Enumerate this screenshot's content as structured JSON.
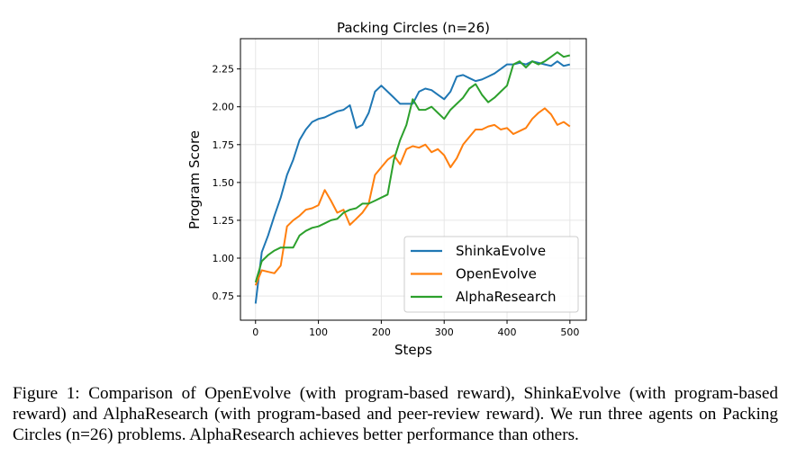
{
  "chart_data": {
    "type": "line",
    "title": "Packing Circles (n=26)",
    "xlabel": "Steps",
    "ylabel": "Program Score",
    "xlim": [
      -24,
      526
    ],
    "ylim": [
      0.59,
      2.45
    ],
    "xticks": [
      0,
      100,
      200,
      300,
      400,
      500
    ],
    "yticks": [
      0.75,
      1.0,
      1.25,
      1.5,
      1.75,
      2.0,
      2.25
    ],
    "ytick_labels": [
      "0.75",
      "1.00",
      "1.25",
      "1.50",
      "1.75",
      "2.00",
      "2.25"
    ],
    "grid": true,
    "legend_position": "bottom-right",
    "x": [
      0,
      10,
      20,
      30,
      40,
      50,
      60,
      70,
      80,
      90,
      100,
      110,
      120,
      130,
      140,
      150,
      160,
      170,
      180,
      190,
      200,
      210,
      220,
      230,
      240,
      250,
      260,
      270,
      280,
      290,
      300,
      310,
      320,
      330,
      340,
      350,
      360,
      370,
      380,
      390,
      400,
      410,
      420,
      430,
      440,
      450,
      460,
      470,
      480,
      490,
      500
    ],
    "series": [
      {
        "name": "ShinkaEvolve",
        "color": "#1f77b4",
        "values": [
          0.7,
          1.04,
          1.15,
          1.28,
          1.4,
          1.55,
          1.65,
          1.78,
          1.85,
          1.9,
          1.92,
          1.93,
          1.95,
          1.97,
          1.98,
          2.01,
          1.86,
          1.88,
          1.96,
          2.1,
          2.14,
          2.1,
          2.06,
          2.02,
          2.02,
          2.02,
          2.1,
          2.12,
          2.11,
          2.08,
          2.05,
          2.1,
          2.2,
          2.21,
          2.19,
          2.17,
          2.18,
          2.2,
          2.22,
          2.25,
          2.28,
          2.28,
          2.29,
          2.28,
          2.3,
          2.29,
          2.28,
          2.27,
          2.3,
          2.27,
          2.28
        ]
      },
      {
        "name": "OpenEvolve",
        "color": "#ff7f0e",
        "values": [
          0.82,
          0.92,
          0.91,
          0.9,
          0.95,
          1.21,
          1.25,
          1.28,
          1.32,
          1.33,
          1.35,
          1.45,
          1.38,
          1.3,
          1.32,
          1.22,
          1.26,
          1.3,
          1.36,
          1.55,
          1.6,
          1.65,
          1.68,
          1.62,
          1.72,
          1.74,
          1.73,
          1.75,
          1.7,
          1.72,
          1.68,
          1.6,
          1.66,
          1.75,
          1.8,
          1.85,
          1.85,
          1.87,
          1.88,
          1.85,
          1.86,
          1.82,
          1.84,
          1.86,
          1.92,
          1.96,
          1.99,
          1.95,
          1.88,
          1.9,
          1.87
        ]
      },
      {
        "name": "AlphaResearch",
        "color": "#2ca02c",
        "values": [
          0.84,
          0.98,
          1.02,
          1.05,
          1.07,
          1.07,
          1.07,
          1.15,
          1.18,
          1.2,
          1.21,
          1.23,
          1.25,
          1.26,
          1.3,
          1.32,
          1.33,
          1.36,
          1.36,
          1.38,
          1.4,
          1.42,
          1.65,
          1.78,
          1.88,
          2.05,
          1.98,
          1.98,
          2.0,
          1.96,
          1.92,
          1.98,
          2.02,
          2.06,
          2.12,
          2.15,
          2.08,
          2.03,
          2.06,
          2.1,
          2.14,
          2.28,
          2.3,
          2.26,
          2.3,
          2.28,
          2.3,
          2.33,
          2.36,
          2.33,
          2.34
        ]
      }
    ]
  },
  "caption": "Figure 1: Comparison of OpenEvolve (with program-based reward), ShinkaEvolve (with program-based reward) and AlphaResearch (with program-based and peer-review reward).  We run three agents on Packing Circles (n=26) problems. AlphaResearch achieves better performance than others."
}
